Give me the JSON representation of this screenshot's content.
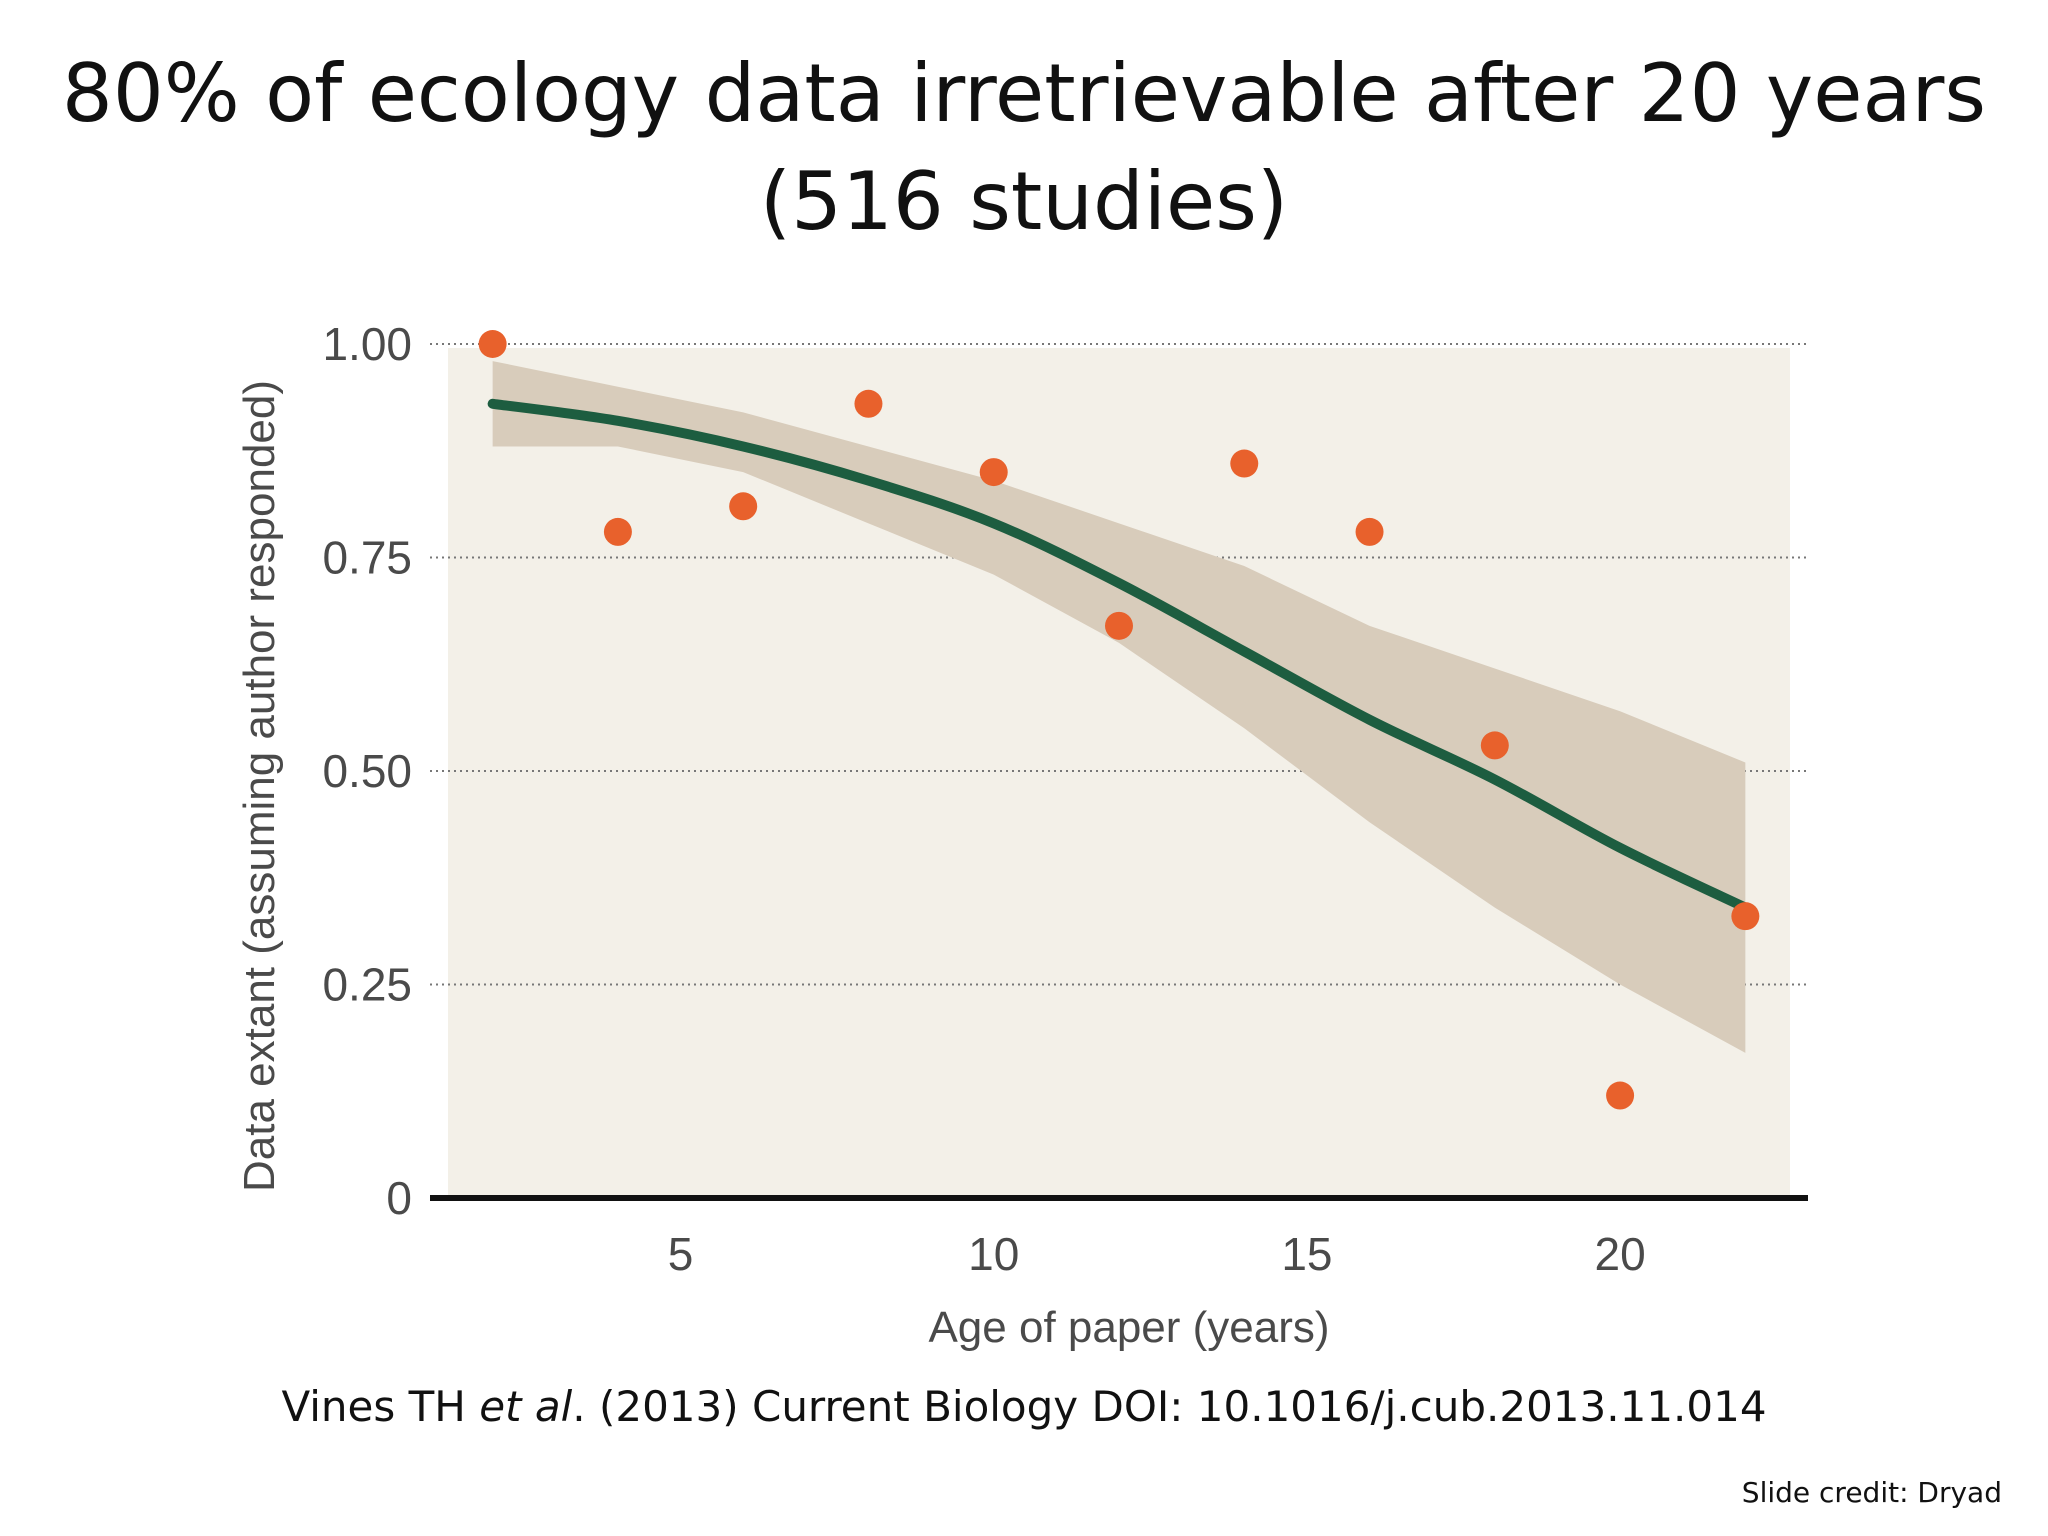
{
  "slide": {
    "title_line1": "80% of ecology data irretrievable after 20 years",
    "title_line2": "(516 studies)",
    "citation_before": "Vines TH ",
    "citation_italic": "et al",
    "citation_after": ". (2013) Current Biology DOI: 10.1016/j.cub.2013.11.014",
    "credit": "Slide credit: Dryad"
  },
  "chart_data": {
    "type": "scatter",
    "title": "",
    "xlabel": "Age of paper (years)",
    "ylabel": "Data extant (assuming author responded)",
    "xlim": [
      1,
      23
    ],
    "ylim": [
      0,
      1
    ],
    "x_ticks": [
      5,
      10,
      15,
      20
    ],
    "x_tick_labels": [
      "5",
      "10",
      "15",
      "20"
    ],
    "y_ticks": [
      0,
      0.25,
      0.5,
      0.75,
      1.0
    ],
    "y_tick_labels": [
      "0",
      "0.25",
      "0.50",
      "0.75",
      "1.00"
    ],
    "grid": "horizontal dotted",
    "points": {
      "x": [
        2,
        4,
        6,
        8,
        10,
        12,
        14,
        16,
        18,
        20,
        22
      ],
      "y": [
        1.0,
        0.78,
        0.81,
        0.93,
        0.85,
        0.67,
        0.86,
        0.78,
        0.53,
        0.12,
        0.33
      ]
    },
    "fit": {
      "x": [
        2,
        4,
        6,
        8,
        10,
        12,
        14,
        16,
        18,
        20,
        22
      ],
      "y": [
        0.93,
        0.91,
        0.88,
        0.84,
        0.79,
        0.72,
        0.64,
        0.56,
        0.49,
        0.41,
        0.34
      ]
    },
    "confidence_band": {
      "x": [
        2,
        4,
        6,
        8,
        10,
        12,
        14,
        16,
        18,
        20,
        22
      ],
      "lower": [
        0.88,
        0.88,
        0.85,
        0.79,
        0.73,
        0.65,
        0.55,
        0.44,
        0.34,
        0.25,
        0.17
      ],
      "upper": [
        0.98,
        0.95,
        0.92,
        0.88,
        0.84,
        0.79,
        0.74,
        0.67,
        0.62,
        0.57,
        0.51
      ]
    },
    "colors": {
      "points": "#e8612c",
      "fit": "#1d5d40",
      "band": "#d8ccbb",
      "plot_background": "#f3f0e8",
      "grid": "#777777",
      "axis": "#111111"
    }
  }
}
